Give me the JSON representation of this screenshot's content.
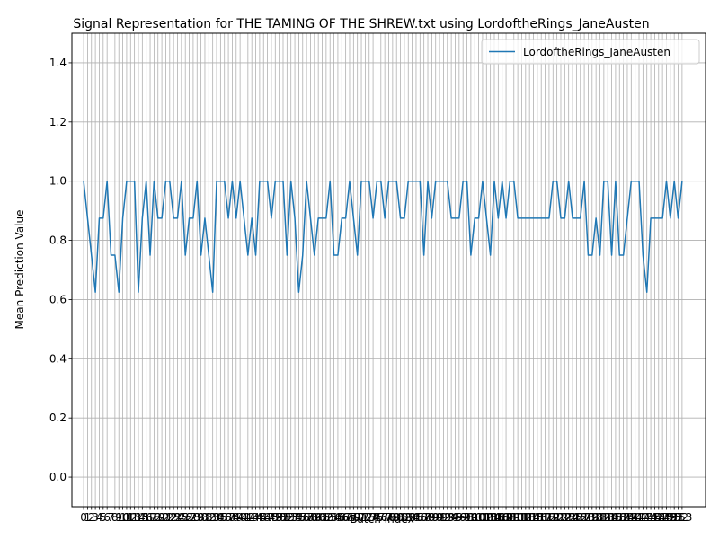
{
  "chart_data": {
    "type": "line",
    "title": "Signal Representation for THE TAMING OF THE SHREW.txt using LordoftheRings_JaneAusten",
    "xlabel": "Batch Index",
    "ylabel": "Mean Prediction Value",
    "xlim": [
      -3.0,
      159.0
    ],
    "ylim": [
      -0.1,
      1.5
    ],
    "yticks": [
      "0.0",
      "0.2",
      "0.4",
      "0.6",
      "0.8",
      "1.0",
      "1.2",
      "1.4"
    ],
    "ytick_values": [
      0.0,
      0.2,
      0.4,
      0.6,
      0.8,
      1.0,
      1.2,
      1.4
    ],
    "x_tick_labels_visible": [
      "0",
      "1",
      "2",
      "3",
      "4",
      "5",
      "6",
      "7",
      "8",
      "9",
      "10",
      "…",
      "153"
    ],
    "x_tick_count": 154,
    "grid": true,
    "legend": "top-right",
    "color": "#1f77b4",
    "series": [
      {
        "name": "LordoftheRings_JaneAusten",
        "values": [
          1.0,
          0.875,
          0.75,
          0.625,
          0.875,
          0.875,
          1.0,
          0.75,
          0.75,
          0.625,
          0.875,
          1.0,
          1.0,
          1.0,
          0.625,
          0.875,
          1.0,
          0.75,
          1.0,
          0.875,
          0.875,
          1.0,
          1.0,
          0.875,
          0.875,
          1.0,
          0.75,
          0.875,
          0.875,
          1.0,
          0.75,
          0.875,
          0.75,
          0.625,
          1.0,
          1.0,
          1.0,
          0.875,
          1.0,
          0.875,
          1.0,
          0.875,
          0.75,
          0.875,
          0.75,
          1.0,
          1.0,
          1.0,
          0.875,
          1.0,
          1.0,
          1.0,
          0.75,
          1.0,
          0.875,
          0.625,
          0.75,
          1.0,
          0.875,
          0.75,
          0.875,
          0.875,
          0.875,
          1.0,
          0.75,
          0.75,
          0.875,
          0.875,
          1.0,
          0.875,
          0.75,
          1.0,
          1.0,
          1.0,
          0.875,
          1.0,
          1.0,
          0.875,
          1.0,
          1.0,
          1.0,
          0.875,
          0.875,
          1.0,
          1.0,
          1.0,
          1.0,
          0.75,
          1.0,
          0.875,
          1.0,
          1.0,
          1.0,
          1.0,
          0.875,
          0.875,
          0.875,
          1.0,
          1.0,
          0.75,
          0.875,
          0.875,
          1.0,
          0.875,
          0.75,
          1.0,
          0.875,
          1.0,
          0.875,
          1.0,
          1.0,
          0.875,
          0.875,
          0.875,
          0.875,
          0.875,
          0.875,
          0.875,
          0.875,
          0.875,
          1.0,
          1.0,
          0.875,
          0.875,
          1.0,
          0.875,
          0.875,
          0.875,
          1.0,
          0.75,
          0.75,
          0.875,
          0.75,
          1.0,
          1.0,
          0.75,
          1.0,
          0.75,
          0.75,
          0.875,
          1.0,
          1.0,
          1.0,
          0.75,
          0.625,
          0.875,
          0.875,
          0.875,
          0.875,
          1.0,
          0.875,
          1.0,
          0.875,
          1.0
        ]
      }
    ]
  }
}
